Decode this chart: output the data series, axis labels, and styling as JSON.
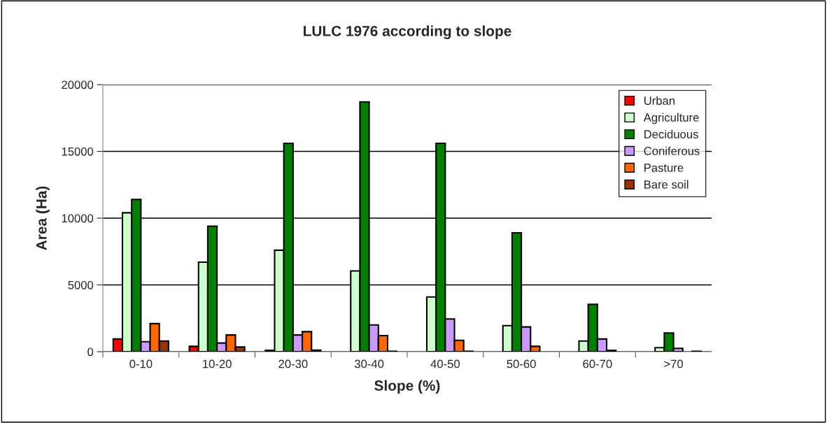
{
  "chart_data": {
    "type": "bar",
    "title": "LULC 1976 according to slope",
    "xlabel": "Slope (%)",
    "ylabel": "Area (Ha)",
    "categories": [
      "0-10",
      "10-20",
      "20-30",
      "30-40",
      "40-50",
      "50-60",
      "60-70",
      ">70"
    ],
    "series": [
      {
        "name": "Urban",
        "color": "#ff0000",
        "values": [
          950,
          400,
          100,
          null,
          null,
          null,
          null,
          null
        ]
      },
      {
        "name": "Agriculture",
        "color": "#ccffcc",
        "values": [
          10400,
          6700,
          7600,
          6050,
          4100,
          1950,
          800,
          300
        ]
      },
      {
        "name": "Deciduous",
        "color": "#008000",
        "values": [
          11400,
          9400,
          15600,
          18700,
          15600,
          8900,
          3550,
          1400
        ]
      },
      {
        "name": "Coniferous",
        "color": "#cc99ff",
        "values": [
          750,
          650,
          1250,
          2000,
          2450,
          1850,
          950,
          250
        ]
      },
      {
        "name": "Pasture",
        "color": "#ff6600",
        "values": [
          2100,
          1250,
          1500,
          1200,
          850,
          400,
          100,
          null
        ]
      },
      {
        "name": "Bare soil",
        "color": "#993300",
        "values": [
          800,
          350,
          120,
          30,
          30,
          null,
          null,
          30
        ]
      }
    ],
    "ylim": [
      0,
      20000
    ],
    "yticks": [
      0,
      5000,
      10000,
      15000,
      20000
    ],
    "grid": "y",
    "legend": "top right"
  }
}
